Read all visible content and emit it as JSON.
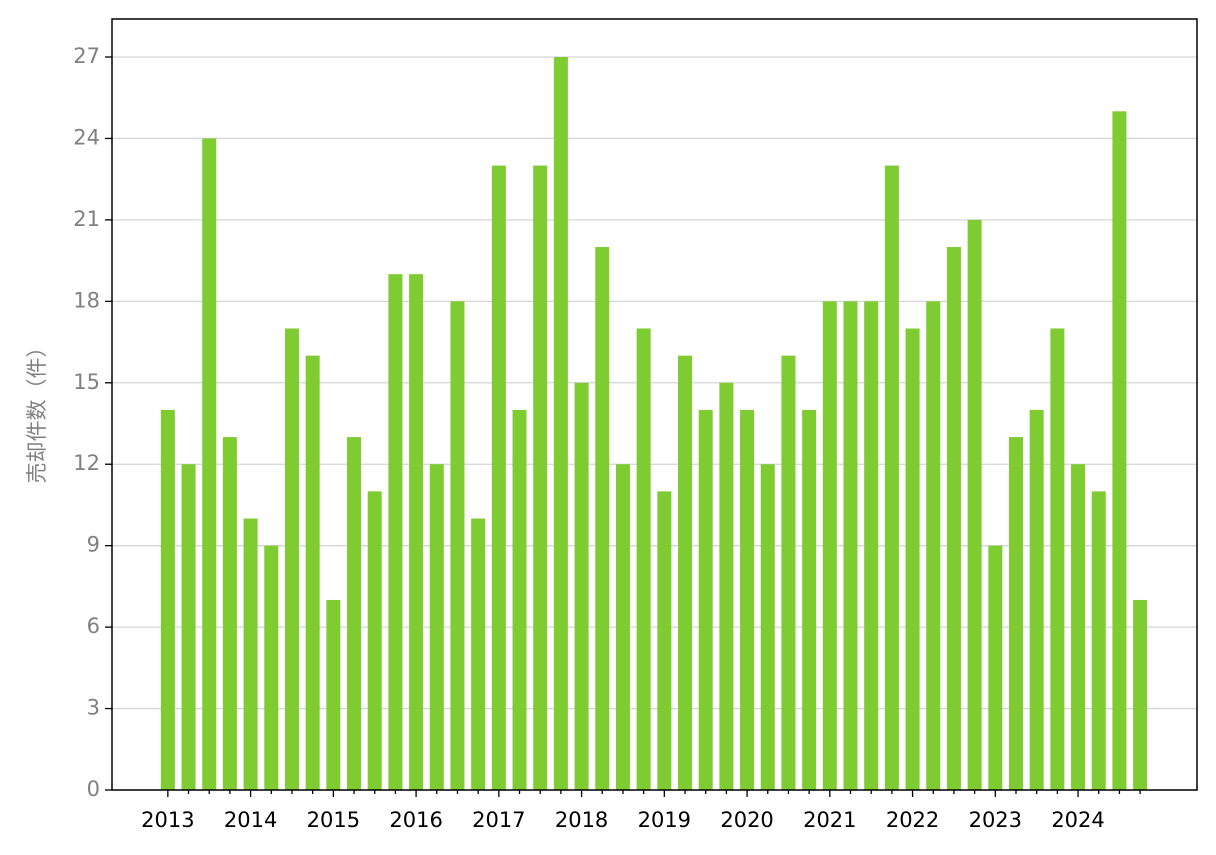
{
  "chart_data": {
    "type": "bar",
    "y_label": "売却件数（件）",
    "categories": [
      "2013",
      null,
      null,
      null,
      "2014",
      null,
      null,
      null,
      "2015",
      null,
      null,
      null,
      "2016",
      null,
      null,
      null,
      "2017",
      null,
      null,
      null,
      "2018",
      null,
      null,
      null,
      "2019",
      null,
      null,
      null,
      "2020",
      null,
      null,
      null,
      "2021",
      null,
      null,
      null,
      "2022",
      null,
      null,
      null,
      "2023",
      null,
      null,
      null,
      "2024",
      null,
      null,
      null
    ],
    "values": [
      14,
      12,
      24,
      13,
      10,
      9,
      17,
      16,
      7,
      13,
      11,
      19,
      19,
      12,
      18,
      10,
      23,
      14,
      23,
      27,
      15,
      20,
      12,
      17,
      11,
      16,
      14,
      15,
      14,
      12,
      16,
      14,
      18,
      18,
      18,
      23,
      17,
      18,
      20,
      21,
      9,
      13,
      14,
      17,
      12,
      11,
      25,
      7
    ],
    "color": "#7ecb32",
    "ylim": [
      0,
      28.4
    ],
    "yticks": [
      0,
      3,
      6,
      9,
      12,
      15,
      18,
      21,
      24,
      27
    ],
    "grid": true
  }
}
